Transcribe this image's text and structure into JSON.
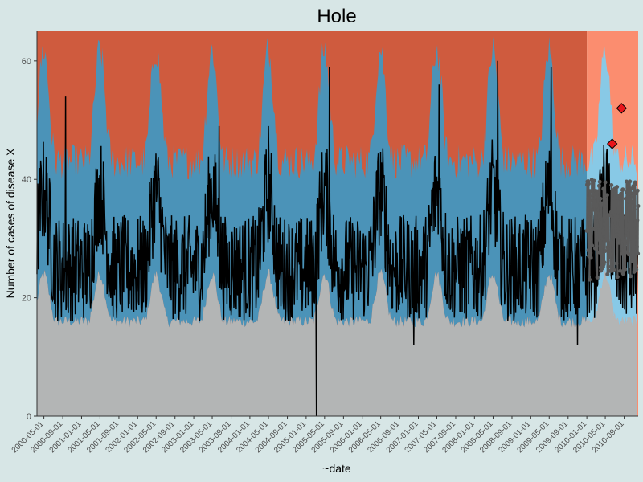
{
  "chart_data": {
    "type": "area",
    "title": "Hole",
    "xlabel": "~date",
    "ylabel": "Number of cases of disease X",
    "ylim": [
      0,
      65
    ],
    "xlim": [
      "2000-03-17",
      "2010-12-01"
    ],
    "yticks": [
      0,
      20,
      40,
      60
    ],
    "xticks": [
      "2000-05-01",
      "2000-09-01",
      "2001-01-01",
      "2001-05-01",
      "2001-09-01",
      "2002-01-01",
      "2002-05-01",
      "2002-09-01",
      "2003-01-01",
      "2003-05-01",
      "2003-09-01",
      "2004-01-01",
      "2004-05-01",
      "2004-09-01",
      "2005-01-01",
      "2005-05-01",
      "2005-09-01",
      "2006-01-01",
      "2006-05-01",
      "2006-09-01",
      "2007-01-01",
      "2007-05-01",
      "2007-09-01",
      "2008-01-01",
      "2008-05-01",
      "2008-09-01",
      "2009-01-01",
      "2009-05-01",
      "2009-09-01",
      "2010-01-01",
      "2010-05-01",
      "2010-09-01"
    ],
    "grid": false,
    "split_date": "2010-01-01",
    "bands": {
      "lower_baseline": 16,
      "lower_peak": 24,
      "upper_baseline": 43,
      "upper_peak": 62,
      "peak_month": 4
    },
    "series": [
      {
        "role": "observed",
        "color": "#000000",
        "peaks": [
          {
            "x": "2000-09-20",
            "y": 54
          },
          {
            "x": "2003-06-15",
            "y": 49
          },
          {
            "x": "2004-05-01",
            "y": 49
          },
          {
            "x": "2005-06-01",
            "y": 59
          },
          {
            "x": "2007-05-15",
            "y": 56
          },
          {
            "x": "2008-06-01",
            "y": 60
          },
          {
            "x": "2009-05-15",
            "y": 59
          }
        ],
        "dips": [
          {
            "x": "2005-03-10",
            "y": 0
          },
          {
            "x": "2009-11-01",
            "y": 12
          },
          {
            "x": "2006-12-01",
            "y": 12
          }
        ]
      },
      {
        "role": "monitored",
        "color": "#5a5a5a",
        "x_range": [
          "2010-01-01",
          "2010-12-01"
        ],
        "y_range": [
          23,
          40
        ]
      }
    ],
    "alarms": [
      {
        "x": "2010-06-15",
        "y": 46
      },
      {
        "x": "2010-08-15",
        "y": 52
      }
    ],
    "colors": {
      "background": "#d7e6e6",
      "upper_region_past": "#cf5b3e",
      "upper_region_current": "#fb8d6f",
      "band_past": "#4b93b8",
      "band_current": "#88c9e6",
      "lower_region": "#b3b5b5",
      "alarm_fill": "#e8151b"
    }
  }
}
